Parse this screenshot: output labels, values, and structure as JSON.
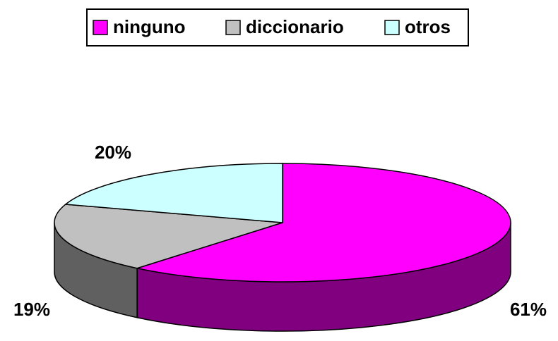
{
  "chart_data": {
    "type": "pie",
    "categories": [
      "ninguno",
      "diccionario",
      "otros"
    ],
    "values": [
      61,
      19,
      20
    ],
    "value_labels": [
      "61%",
      "19%",
      "20%"
    ],
    "colors": [
      "#ff00ff",
      "#c0c0c0",
      "#ccffff"
    ],
    "side_colors": [
      "#800080",
      "#606060",
      "#669999"
    ],
    "legend": "top"
  }
}
